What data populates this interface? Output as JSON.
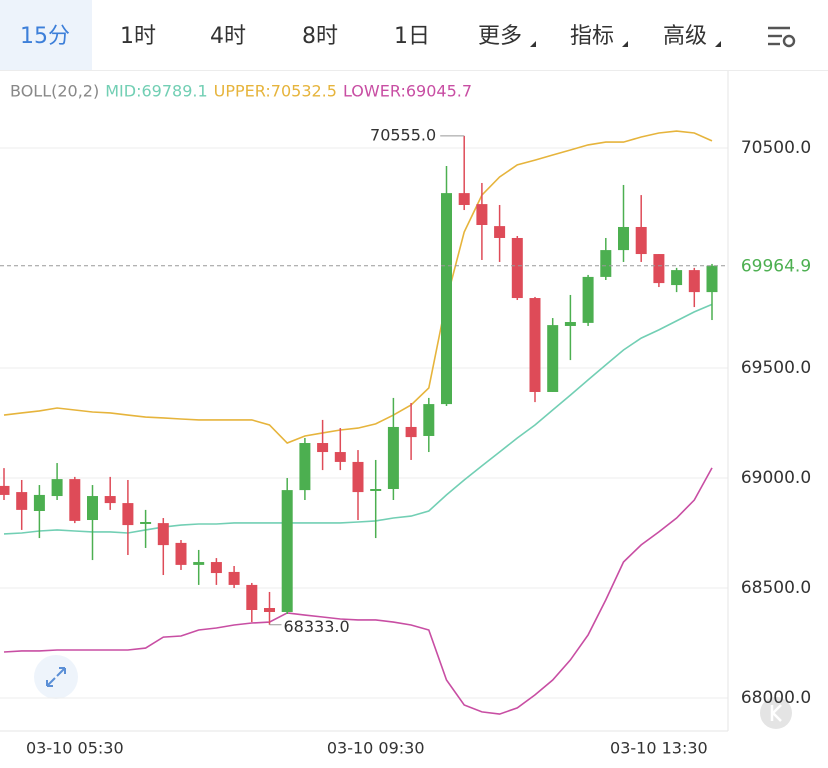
{
  "toolbar": {
    "tabs": [
      {
        "label": "15分",
        "active": true
      },
      {
        "label": "1时"
      },
      {
        "label": "4时"
      },
      {
        "label": "8时"
      },
      {
        "label": "1日"
      },
      {
        "label": "更多",
        "dropdown": true
      },
      {
        "label": "指标",
        "dropdown": true
      },
      {
        "label": "高级",
        "dropdown": true
      }
    ]
  },
  "chart_data": {
    "type": "candlestick",
    "categories": [
      null,
      null,
      null,
      null,
      "03-10 05:30",
      null,
      null,
      null,
      null,
      null,
      null,
      null,
      null,
      null,
      null,
      null,
      null,
      null,
      null,
      null,
      null,
      "03-10 09:30",
      null,
      null,
      null,
      null,
      null,
      null,
      null,
      null,
      null,
      null,
      null,
      null,
      null,
      null,
      null,
      "03-10 13:30",
      null,
      null,
      null
    ],
    "open": [
      68964,
      68936,
      68850,
      68918,
      68995,
      68809,
      68918,
      68886,
      68791,
      68795,
      68705,
      68605,
      68618,
      68573,
      68514,
      68409,
      68391,
      68945,
      69159,
      69118,
      69073,
      68941,
      68950,
      69232,
      69191,
      69336,
      70295,
      70245,
      70145,
      70091,
      69818,
      69391,
      69691,
      69705,
      69914,
      70036,
      70141,
      70018,
      69877,
      69945,
      69845
    ],
    "high": [
      69045,
      68991,
      68968,
      69068,
      69005,
      68968,
      69005,
      68991,
      68855,
      68818,
      68718,
      68673,
      68636,
      68600,
      68523,
      68482,
      69000,
      69182,
      69264,
      69227,
      69127,
      69082,
      69364,
      69341,
      69364,
      70418,
      70555,
      70341,
      70241,
      70100,
      69823,
      69727,
      69832,
      69923,
      70091,
      70332,
      70286,
      70018,
      69955,
      69955,
      69973
    ],
    "low": [
      68900,
      68764,
      68727,
      68900,
      68795,
      68627,
      68855,
      68650,
      68682,
      68559,
      68582,
      68514,
      68514,
      68500,
      68345,
      68333,
      68382,
      68900,
      69036,
      69036,
      68809,
      68727,
      68900,
      69082,
      69118,
      69327,
      70218,
      69991,
      69982,
      69809,
      69345,
      69391,
      69536,
      69691,
      69900,
      69982,
      69982,
      69868,
      69845,
      69777,
      69718
    ],
    "close": [
      68923,
      68855,
      68923,
      68995,
      68805,
      68918,
      68886,
      68786,
      68800,
      68695,
      68605,
      68618,
      68568,
      68514,
      68400,
      68391,
      68945,
      69159,
      69118,
      69073,
      68936,
      68950,
      69232,
      69186,
      69336,
      70295,
      70241,
      70150,
      70091,
      69818,
      69391,
      69695,
      69709,
      69914,
      70036,
      70141,
      70018,
      69886,
      69945,
      69845,
      69964.9
    ],
    "up_color": "#4caf50",
    "down_color": "#de4b58",
    "indicator": {
      "name": "BOLL(20,2)",
      "lines": [
        {
          "label": "MID:",
          "last_label": "69789.1",
          "color": "#72cfb4",
          "values": [
            68746,
            68750,
            68759,
            68764,
            68759,
            68755,
            68755,
            68750,
            68764,
            68777,
            68786,
            68791,
            68791,
            68796,
            68796,
            68796,
            68796,
            68796,
            68796,
            68796,
            68800,
            68805,
            68818,
            68827,
            68850,
            68923,
            68991,
            69055,
            69118,
            69182,
            69241,
            69309,
            69377,
            69446,
            69514,
            69582,
            69636,
            69673,
            69714,
            69755,
            69789.1
          ]
        },
        {
          "label": "UPPER:",
          "last_label": "70532.5",
          "color": "#e6b43c",
          "values": [
            69286,
            69296,
            69305,
            69318,
            69309,
            69300,
            69296,
            69286,
            69277,
            69273,
            69268,
            69264,
            69264,
            69264,
            69264,
            69241,
            69159,
            69191,
            69205,
            69218,
            69227,
            69246,
            69286,
            69332,
            69409,
            69809,
            70118,
            70286,
            70368,
            70423,
            70445,
            70468,
            70491,
            70514,
            70527,
            70527,
            70550,
            70568,
            70577,
            70568,
            70532.5
          ]
        },
        {
          "label": "LOWER:",
          "last_label": "69045.7",
          "color": "#c84ea3",
          "values": [
            68209,
            68214,
            68214,
            68218,
            68218,
            68218,
            68218,
            68218,
            68227,
            68277,
            68282,
            68309,
            68318,
            68332,
            68341,
            68345,
            68387,
            68377,
            68368,
            68359,
            68355,
            68355,
            68345,
            68332,
            68309,
            68082,
            67968,
            67937,
            67927,
            67955,
            68014,
            68082,
            68173,
            68287,
            68446,
            68618,
            68696,
            68755,
            68818,
            68900,
            69045.7
          ]
        }
      ]
    },
    "max_label": {
      "value": 70555,
      "label": "70555.0"
    },
    "min_label": {
      "value": 68333,
      "label": "68333.0"
    },
    "ylim": [
      67850,
      70850
    ],
    "yticks": [
      {
        "value": 68000,
        "label": "68000.0"
      },
      {
        "value": 68500,
        "label": "68500.0"
      },
      {
        "value": 69000,
        "label": "69000.0"
      },
      {
        "value": 69500,
        "label": "69500.0"
      },
      {
        "value": 70500,
        "label": "70500.0"
      }
    ],
    "grid": true
  }
}
